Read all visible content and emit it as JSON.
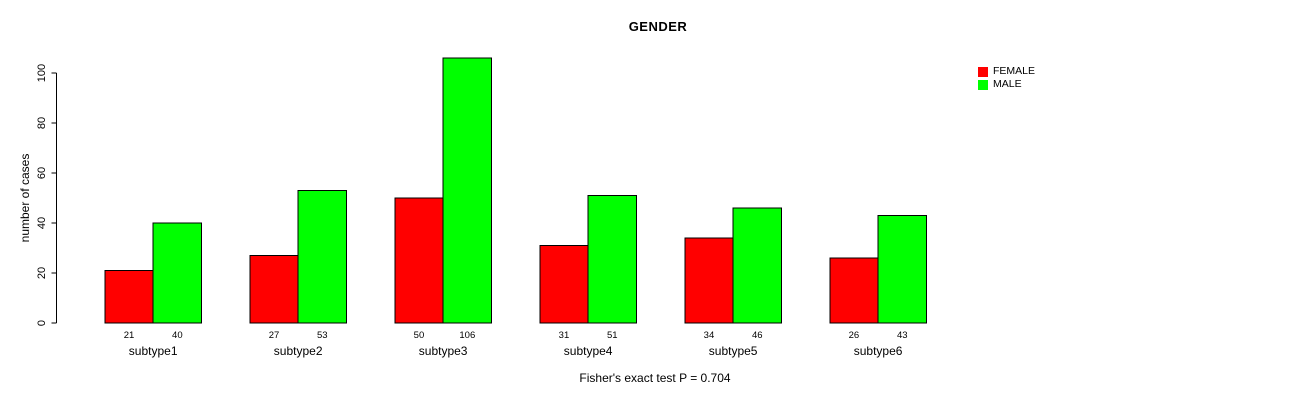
{
  "chart_data": {
    "type": "bar",
    "title": "GENDER",
    "xlabel": "",
    "ylabel": "number of cases",
    "categories": [
      "subtype1",
      "subtype2",
      "subtype3",
      "subtype4",
      "subtype5",
      "subtype6"
    ],
    "series": [
      {
        "name": "FEMALE",
        "color": "#ff0000",
        "values": [
          21,
          27,
          50,
          31,
          34,
          26
        ]
      },
      {
        "name": "MALE",
        "color": "#00ff00",
        "values": [
          40,
          53,
          106,
          51,
          46,
          43
        ]
      }
    ],
    "bar_value_labels_shown": true,
    "yticks": [
      0,
      20,
      40,
      60,
      80,
      100
    ],
    "ylim": [
      0,
      100
    ],
    "grid": false,
    "legend_position": "top-right",
    "bar_border_color": "#000000",
    "annotation": "Fisher's exact test P = 0.704"
  }
}
